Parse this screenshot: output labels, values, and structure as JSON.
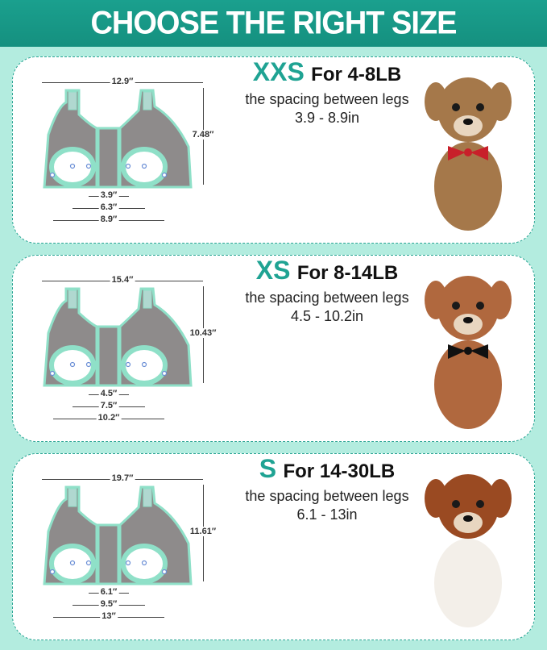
{
  "title": "CHOOSE THE RIGHT SIZE",
  "colors": {
    "accent": "#1fa393",
    "background": "#b3ecdf",
    "harness": "#8e8b8b",
    "trim": "#8fe0c8"
  },
  "sizes": [
    {
      "size": "XXS",
      "weight": "For 4-8LB",
      "spacing_label": "the spacing between legs",
      "spacing": "3.9 - 8.9in",
      "width": "12.9″",
      "height": "7.48″",
      "inner": "3.9″",
      "middle": "6.3″",
      "outer": "8.9″",
      "dog": "yorkshire-terrier-red-bow",
      "fur": "#a5784a"
    },
    {
      "size": "XS",
      "weight": "For 8-14LB",
      "spacing_label": "the spacing between legs",
      "spacing": "4.5 - 10.2in",
      "width": "15.4″",
      "height": "10.43″",
      "inner": "4.5″",
      "middle": "7.5″",
      "outer": "10.2″",
      "dog": "poodle-black-bow",
      "fur": "#b0683e"
    },
    {
      "size": "S",
      "weight": "For 14-30LB",
      "spacing_label": "the spacing between legs",
      "spacing": "6.1 - 13in",
      "width": "19.7″",
      "height": "11.61″",
      "inner": "6.1″",
      "middle": "9.5″",
      "outer": "13″",
      "dog": "cavalier-king-charles",
      "fur": "#9a4a22"
    }
  ]
}
